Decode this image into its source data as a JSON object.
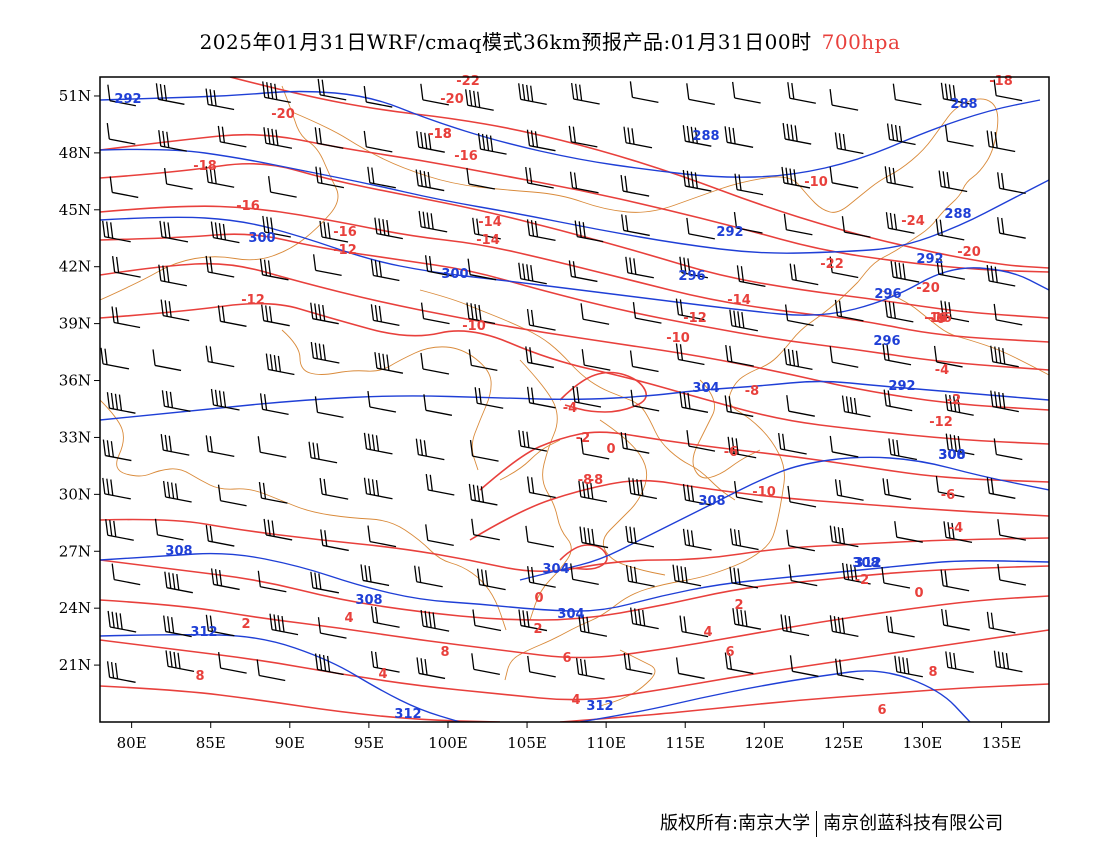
{
  "title": {
    "main": "2025年01月31日WRF/cmaq模式36km预报产品:01月31日00时",
    "level": "700hpa",
    "level_color": "#e8403c"
  },
  "map": {
    "lon_range": [
      78,
      138
    ],
    "lat_range": [
      18,
      52
    ],
    "lon_ticks": [
      "80E",
      "85E",
      "90E",
      "95E",
      "100E",
      "105E",
      "110E",
      "115E",
      "120E",
      "125E",
      "130E",
      "135E"
    ],
    "lat_ticks": [
      "51N",
      "48N",
      "45N",
      "42N",
      "39N",
      "36N",
      "33N",
      "30N",
      "27N",
      "24N",
      "21N"
    ],
    "colors": {
      "temperature": "#e8403c",
      "geopotential": "#1f3fd6",
      "border": "#d98a3a",
      "barb": "#000000"
    },
    "temperature_labels": [
      "-22",
      "-20",
      "-20",
      "-18",
      "-18",
      "-16",
      "-16",
      "-16",
      "-14",
      "-14",
      "-12",
      "-12",
      "-10",
      "-10",
      "-24",
      "-22",
      "-20",
      "-20",
      "-16",
      "-14",
      "-12",
      "-10",
      "-8",
      "-6",
      "-4",
      "-2",
      "0",
      "-8",
      "-6",
      "-4",
      "-2",
      "-12",
      "-10",
      "-8",
      "-6",
      "-4",
      "-2",
      "0",
      "2",
      "4",
      "6",
      "8",
      "4",
      "6",
      "8",
      "2",
      "4",
      "0",
      "2",
      "4",
      "6",
      "8",
      "-18",
      "-18",
      "-16"
    ],
    "geopotential_labels": [
      "292",
      "288",
      "292",
      "296",
      "300",
      "300",
      "288",
      "292",
      "296",
      "296",
      "292",
      "300",
      "304",
      "304",
      "308",
      "308",
      "308",
      "304",
      "308",
      "312",
      "312",
      "312",
      "308",
      "312",
      "288"
    ]
  },
  "footer": {
    "left": "版权所有:南京大学",
    "right": "南京创蓝科技有限公司"
  }
}
